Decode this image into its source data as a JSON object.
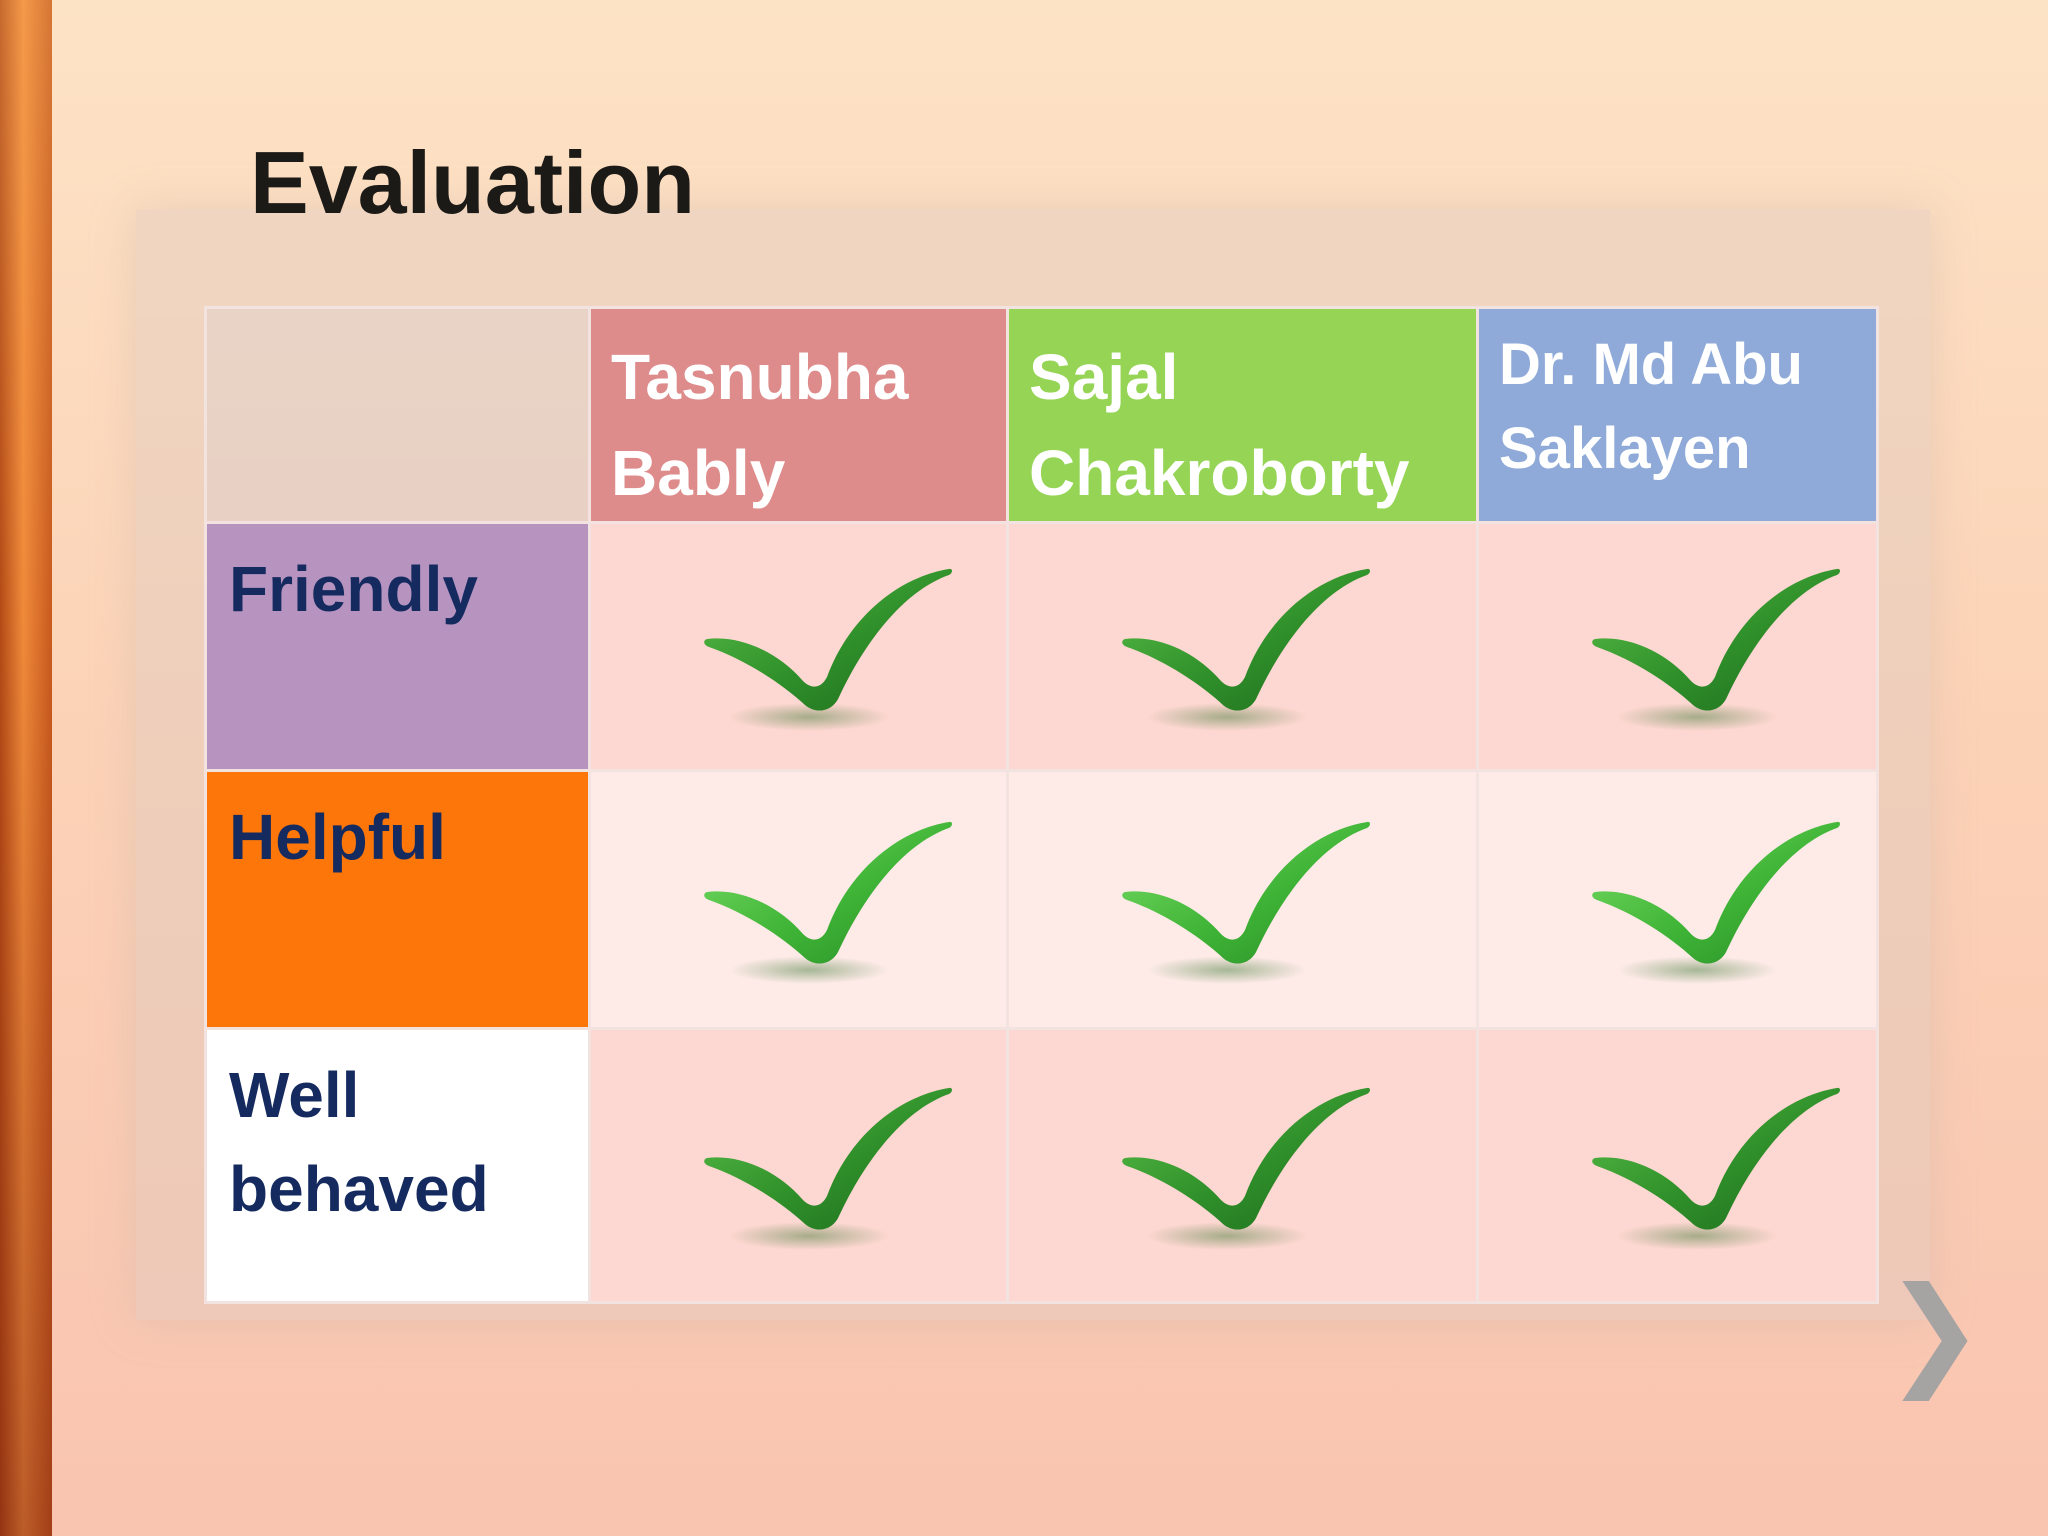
{
  "slide": {
    "title": "Evaluation"
  },
  "table": {
    "columns": [
      {
        "name": "Tasnubha Bably",
        "color": "#de8b8b"
      },
      {
        "name": "Sajal Chakroborty",
        "color": "#95d454"
      },
      {
        "name": "Dr. Md Abu Saklayen",
        "color": "#8faad8"
      }
    ],
    "rows": [
      {
        "label": "Friendly",
        "color": "#b794c0",
        "cell_bg": "#fdd7d1"
      },
      {
        "label": "Helpful",
        "color": "#fd760a",
        "cell_bg": "#feebe8"
      },
      {
        "label": "Well behaved",
        "color": "#ffffff",
        "cell_bg": "#fdd7d1"
      }
    ],
    "marks": [
      [
        "check-icon",
        "check-icon",
        "check-icon"
      ],
      [
        "check-icon",
        "check-icon",
        "check-icon"
      ],
      [
        "check-icon",
        "check-icon",
        "check-icon"
      ]
    ]
  },
  "nav": {
    "next_icon": "chevron-right-icon",
    "next_glyph": "❯"
  }
}
